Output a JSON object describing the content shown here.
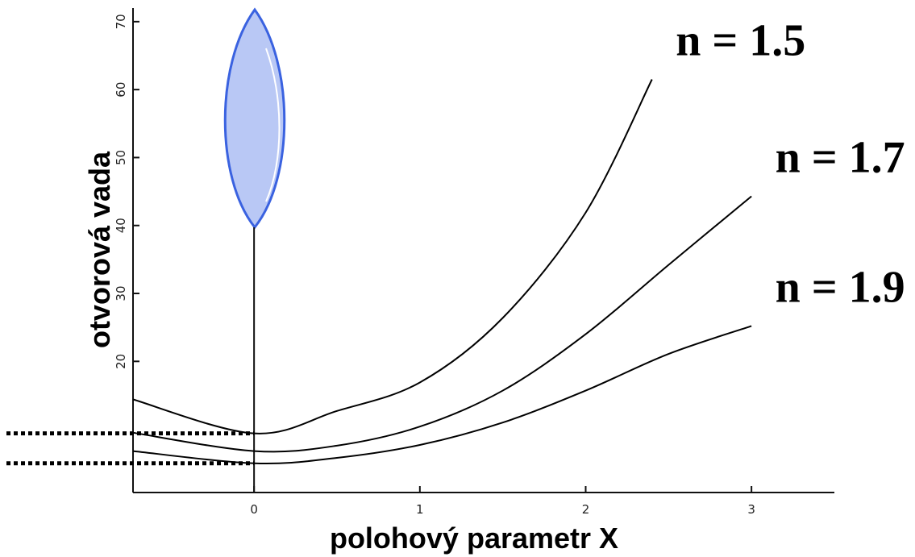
{
  "chart_data": {
    "type": "line",
    "x_label": "polohový parametr X",
    "y_label": "otvorová vada",
    "xlim": [
      -0.73,
      3.5
    ],
    "ylim": [
      0.7,
      72
    ],
    "xticks": [
      0,
      1,
      2,
      3
    ],
    "yticks": [
      20,
      30,
      40,
      50,
      60,
      70
    ],
    "color": "#000000",
    "series": [
      {
        "name": "n = 1.5",
        "x": [
          -0.73,
          0,
          0.5,
          1,
          1.5,
          2,
          2.4
        ],
        "values": [
          14.4,
          9.4,
          12.7,
          16.9,
          26.4,
          41.9,
          61.5
        ]
      },
      {
        "name": "n = 1.7",
        "x": [
          -0.73,
          0,
          0.5,
          1,
          1.5,
          2,
          2.5,
          3
        ],
        "values": [
          9.5,
          6.8,
          7.6,
          10.4,
          15.7,
          24.0,
          34.2,
          44.3
        ]
      },
      {
        "name": "n = 1.9",
        "x": [
          -0.73,
          0,
          0.5,
          1,
          1.5,
          2,
          2.5,
          3
        ],
        "values": [
          6.8,
          5.0,
          5.8,
          7.7,
          11.0,
          15.7,
          21.1,
          25.2
        ]
      }
    ]
  }
}
